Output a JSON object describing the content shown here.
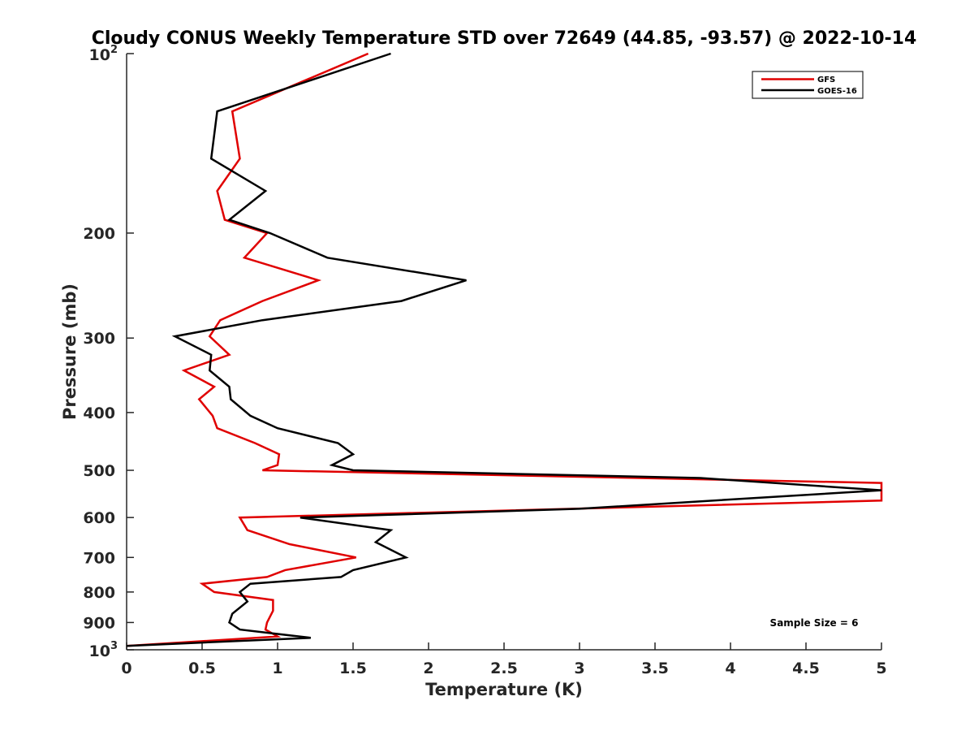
{
  "chart_data": {
    "type": "line",
    "title": "Cloudy CONUS Weekly Temperature STD over 72649 (44.85, -93.57) @ 2022-10-14",
    "xlabel": "Temperature (K)",
    "ylabel": "Pressure (mb)",
    "xlim": [
      0,
      5
    ],
    "ylim": [
      100,
      1000
    ],
    "y_scale": "log",
    "y_reversed": true,
    "x_ticks": [
      "0",
      "0.5",
      "1",
      "1.5",
      "2",
      "2.5",
      "3",
      "3.5",
      "4",
      "4.5",
      "5"
    ],
    "y_ticks": [
      {
        "value": 100,
        "base": "10",
        "exp": "2"
      },
      {
        "value": 200,
        "label": "200"
      },
      {
        "value": 300,
        "label": "300"
      },
      {
        "value": 400,
        "label": "400"
      },
      {
        "value": 500,
        "label": "500"
      },
      {
        "value": 600,
        "label": "600"
      },
      {
        "value": 700,
        "label": "700"
      },
      {
        "value": 800,
        "label": "800"
      },
      {
        "value": 900,
        "label": "900"
      },
      {
        "value": 1000,
        "base": "10",
        "exp": "3"
      }
    ],
    "grid": false,
    "legend_position": "top-right",
    "series": [
      {
        "name": "GFS",
        "color": "#e00000",
        "points": [
          [
            1.6,
            100
          ],
          [
            0.7,
            125
          ],
          [
            0.75,
            150
          ],
          [
            0.6,
            170
          ],
          [
            0.65,
            190
          ],
          [
            0.93,
            200
          ],
          [
            0.78,
            220
          ],
          [
            1.27,
            240
          ],
          [
            0.9,
            260
          ],
          [
            0.62,
            280
          ],
          [
            0.55,
            298
          ],
          [
            0.68,
            320
          ],
          [
            0.38,
            340
          ],
          [
            0.58,
            362
          ],
          [
            0.48,
            380
          ],
          [
            0.57,
            405
          ],
          [
            0.6,
            425
          ],
          [
            0.85,
            450
          ],
          [
            1.01,
            470
          ],
          [
            1.0,
            490
          ],
          [
            0.9,
            500
          ],
          [
            5.0,
            525
          ],
          [
            5.0,
            562
          ],
          [
            0.75,
            600
          ],
          [
            0.8,
            630
          ],
          [
            1.08,
            665
          ],
          [
            1.52,
            700
          ],
          [
            1.05,
            735
          ],
          [
            0.93,
            755
          ],
          [
            0.5,
            775
          ],
          [
            0.58,
            800
          ],
          [
            0.97,
            825
          ],
          [
            0.97,
            860
          ],
          [
            0.93,
            900
          ],
          [
            0.92,
            925
          ],
          [
            1.0,
            950
          ],
          [
            0.0,
            985
          ]
        ]
      },
      {
        "name": "GOES-16",
        "color": "#000000",
        "points": [
          [
            1.75,
            100
          ],
          [
            0.6,
            125
          ],
          [
            0.56,
            150
          ],
          [
            0.92,
            170
          ],
          [
            0.68,
            190
          ],
          [
            0.95,
            200
          ],
          [
            1.33,
            220
          ],
          [
            2.25,
            240
          ],
          [
            1.82,
            260
          ],
          [
            0.9,
            280
          ],
          [
            0.32,
            298
          ],
          [
            0.56,
            320
          ],
          [
            0.55,
            340
          ],
          [
            0.68,
            362
          ],
          [
            0.69,
            380
          ],
          [
            0.82,
            405
          ],
          [
            1.0,
            425
          ],
          [
            1.4,
            450
          ],
          [
            1.5,
            470
          ],
          [
            1.36,
            490
          ],
          [
            1.5,
            500
          ],
          [
            3.8,
            515
          ],
          [
            5.0,
            540
          ],
          [
            3.0,
            580
          ],
          [
            1.15,
            600
          ],
          [
            1.75,
            630
          ],
          [
            1.65,
            660
          ],
          [
            1.85,
            700
          ],
          [
            1.5,
            735
          ],
          [
            1.42,
            755
          ],
          [
            0.82,
            775
          ],
          [
            0.75,
            800
          ],
          [
            0.8,
            830
          ],
          [
            0.7,
            870
          ],
          [
            0.68,
            900
          ],
          [
            0.75,
            925
          ],
          [
            1.22,
            955
          ],
          [
            0.0,
            985
          ]
        ]
      }
    ],
    "annotations": [
      "Sample Size = 6"
    ]
  }
}
